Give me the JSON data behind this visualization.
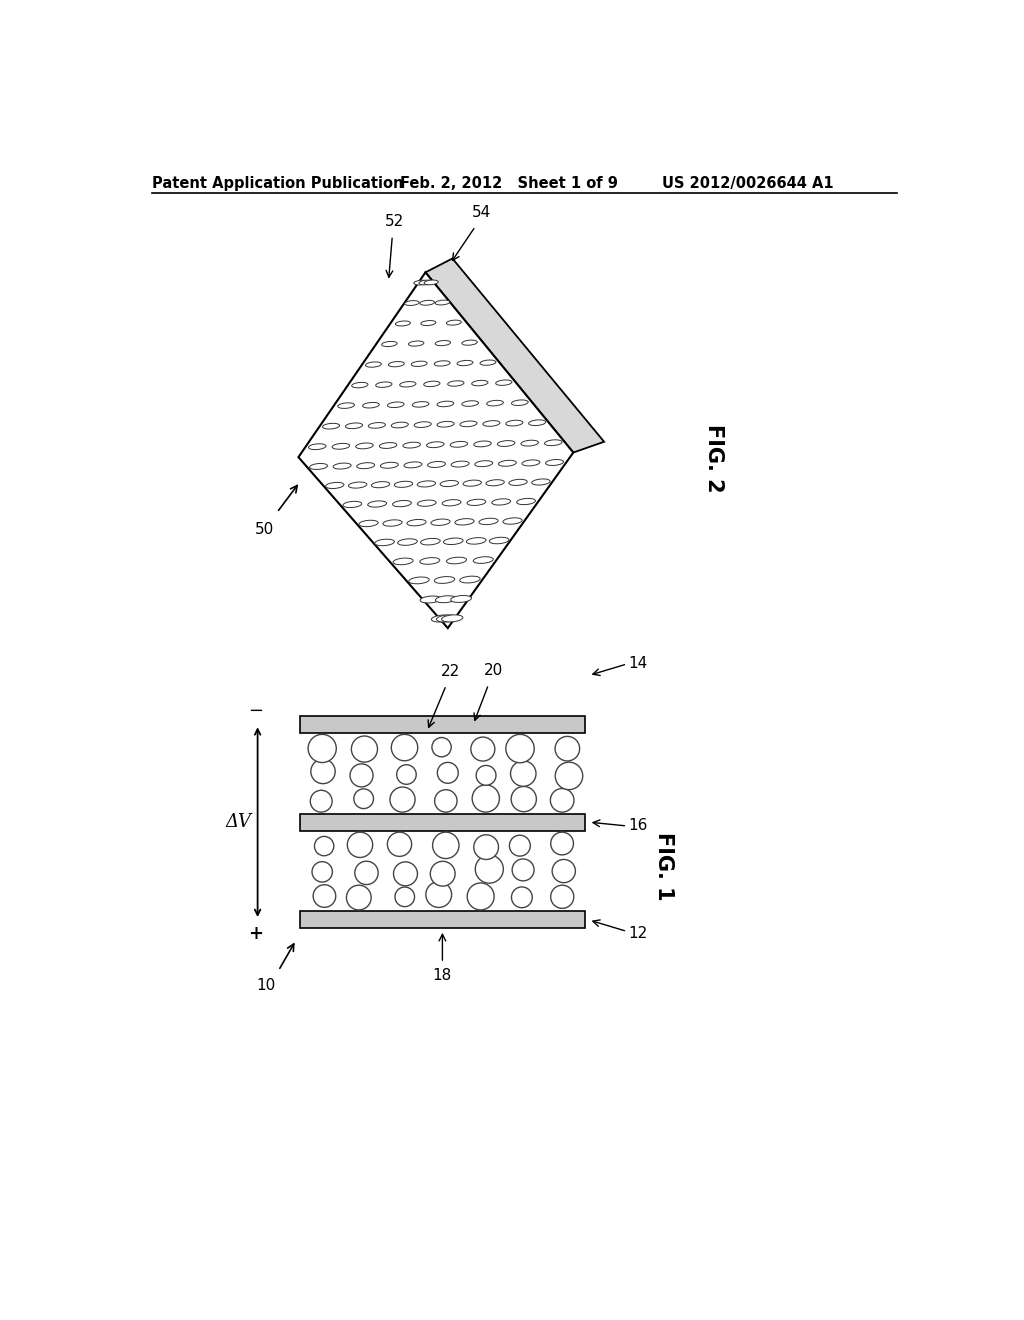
{
  "background_color": "#ffffff",
  "header_left": "Patent Application Publication",
  "header_mid": "Feb. 2, 2012   Sheet 1 of 9",
  "header_right": "US 2012/0026644 A1",
  "fig2_label": "FIG. 2",
  "fig1_label": "FIG. 1",
  "label_50": "50",
  "label_52": "52",
  "label_54": "54",
  "label_10": "10",
  "label_12": "12",
  "label_14": "14",
  "label_16": "16",
  "label_18": "18",
  "label_20": "20",
  "label_22": "22",
  "label_dv": "ΔV",
  "label_minus": "−",
  "label_plus": "+"
}
